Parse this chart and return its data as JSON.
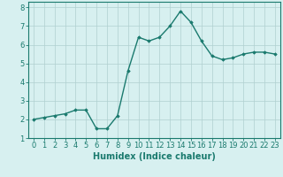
{
  "x": [
    0,
    1,
    2,
    3,
    4,
    5,
    6,
    7,
    8,
    9,
    10,
    11,
    12,
    13,
    14,
    15,
    16,
    17,
    18,
    19,
    20,
    21,
    22,
    23
  ],
  "y": [
    2.0,
    2.1,
    2.2,
    2.3,
    2.5,
    2.5,
    1.5,
    1.5,
    2.2,
    4.6,
    6.4,
    6.2,
    6.4,
    7.0,
    7.8,
    7.2,
    6.2,
    5.4,
    5.2,
    5.3,
    5.5,
    5.6,
    5.6,
    5.5
  ],
  "line_color": "#1a7a6e",
  "marker": "D",
  "marker_size": 1.8,
  "bg_color": "#d7f0f0",
  "grid_color": "#b0d0d0",
  "tick_color": "#1a7a6e",
  "label_color": "#1a7a6e",
  "xlabel": "Humidex (Indice chaleur)",
  "ylim": [
    1,
    8.3
  ],
  "yticks": [
    1,
    2,
    3,
    4,
    5,
    6,
    7,
    8
  ],
  "xlim": [
    -0.5,
    23.5
  ],
  "xticks": [
    0,
    1,
    2,
    3,
    4,
    5,
    6,
    7,
    8,
    9,
    10,
    11,
    12,
    13,
    14,
    15,
    16,
    17,
    18,
    19,
    20,
    21,
    22,
    23
  ],
  "xlabel_fontsize": 7,
  "tick_fontsize": 6,
  "line_width": 1.0
}
